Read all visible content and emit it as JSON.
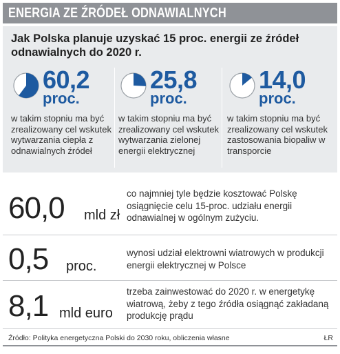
{
  "header": {
    "title": "ENERGIA ZE ŹRÓDEŁ ODNAWIALNYCH"
  },
  "subtitle": "Jak Polska planuje uzyskać 15 proc. energii ze źródeł odnawialnych do 2020 r.",
  "stats": [
    {
      "value": "60,2",
      "unit": "proc.",
      "fraction": 0.602,
      "desc": "w takim stopniu ma być zrealizowany cel wskutek wytwarzania ciepła z odnawialnych źródeł"
    },
    {
      "value": "25,8",
      "unit": "proc.",
      "fraction": 0.258,
      "desc": "w takim stopniu ma być zrealizowany cel wskutek wytwarzania zielonej energii elektrycznej"
    },
    {
      "value": "14,0",
      "unit": "proc.",
      "fraction": 0.14,
      "desc": "w takim stopniu ma być zrealizowany cel wskutek zastosowania biopaliw w transporcie"
    }
  ],
  "rows": [
    {
      "value": "60,0",
      "unit": "mld zł",
      "desc": "co najmniej tyle będzie kosztować Polskę osiągnięcie celu 15-proc. udziału energii odnawialnej w ogólnym zużyciu."
    },
    {
      "value": "0,5",
      "unit": "proc.",
      "desc": "wynosi udział elektrowni wiatrowych w produkcji energii elektrycznej w Polsce"
    },
    {
      "value": "8,1",
      "unit": "mld euro",
      "desc": "trzeba zainwestować do 2020 r. w energetykę wiatrową, żeby z tego źródła osiągnąć zakładaną produkcję prądu"
    }
  ],
  "source": "Źródło: Polityka energetyczna Polski do 2030 roku, obliczenia własne",
  "author": "ŁR",
  "colors": {
    "accent": "#1e5aa0",
    "pie_bg": "#ffffff",
    "pie_rim": "#9aa0a6",
    "header_bg": "#8f9297",
    "panel_bg": "#e9ebed"
  }
}
